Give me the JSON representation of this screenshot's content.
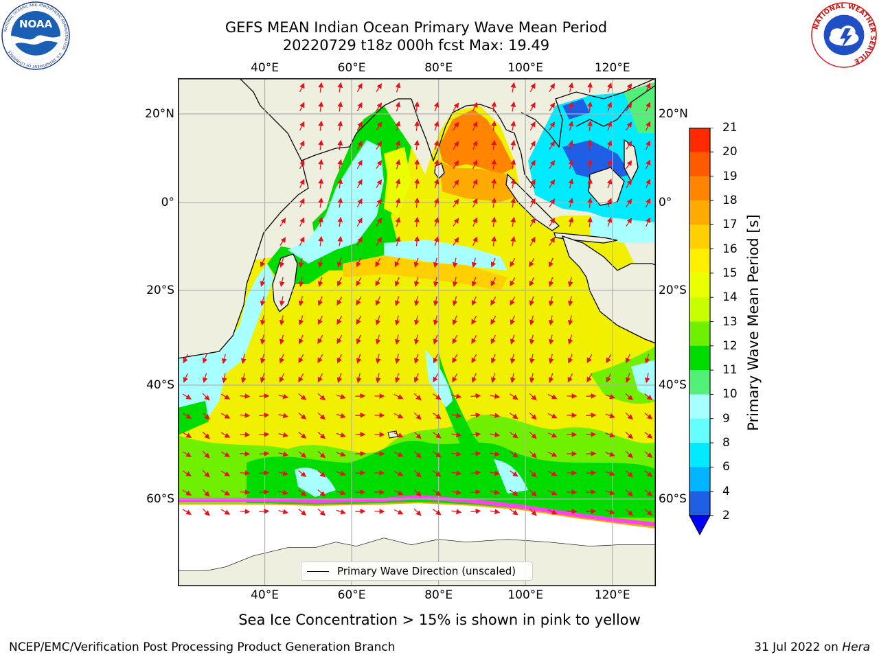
{
  "header": {
    "title_line1": "GEFS MEAN Indian Ocean Primary Wave Mean Period",
    "title_line2": "20220729 t18z 000h fcst   Max: 19.49"
  },
  "logos": {
    "left": "NOAA",
    "left_ring": "NATIONAL OCEANIC AND ATMOSPHERIC ADMINISTRATION · U.S. DEPARTMENT OF COMMERCE",
    "right_ring": "NATIONAL WEATHER SERVICE"
  },
  "map": {
    "lon_labels": [
      "40°E",
      "60°E",
      "80°E",
      "100°E",
      "120°E"
    ],
    "lat_labels": [
      "20°N",
      "0°",
      "20°S",
      "40°S",
      "60°S"
    ],
    "extent": {
      "lon_min": 20,
      "lon_max": 130,
      "lat_min": -74,
      "lat_max": 28
    },
    "colors": {
      "land": "#efefdf",
      "coast": "#000000",
      "grid": "#b0b0b0",
      "arrow": "#e8121a",
      "ice": "#ff44ee"
    }
  },
  "colorbar": {
    "label": "Primary Wave Mean Period [s]",
    "ticks": [
      "2",
      "4",
      "6",
      "8",
      "9",
      "10",
      "11",
      "12",
      "13",
      "14",
      "15",
      "16",
      "17",
      "18",
      "19",
      "20",
      "21"
    ],
    "colors": [
      "#1f5fe6",
      "#00b4ff",
      "#00ebff",
      "#66ffff",
      "#a8ffff",
      "#52f078",
      "#00dc00",
      "#6ef000",
      "#c8ff00",
      "#eaff00",
      "#ffef00",
      "#ffcf00",
      "#ffaa00",
      "#ff8500",
      "#ff5a00",
      "#ff2a00"
    ],
    "under_color": "#0000ff"
  },
  "legend": {
    "label": "Primary Wave Direction (unscaled)"
  },
  "note": "Sea Ice Concentration > 15% is shown in pink to yellow",
  "footer": {
    "left": "NCEP/EMC/Verification Post Processing Product Generation Branch",
    "date": "31 Jul 2022 on ",
    "machine": "Hera"
  }
}
